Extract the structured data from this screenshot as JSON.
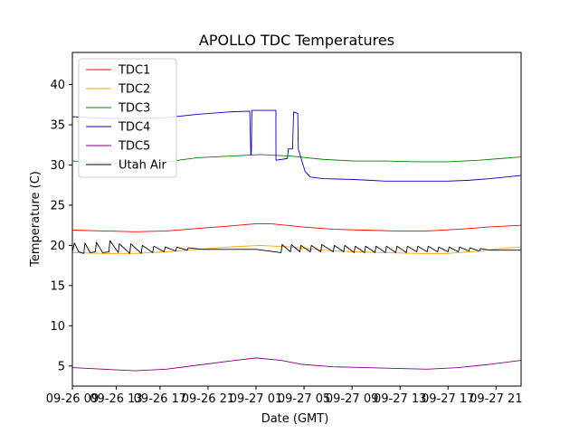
{
  "chart_data": {
    "type": "line",
    "title": "APOLLO TDC Temperatures",
    "xlabel": "Date (GMT)",
    "ylabel": "Temperature (C)",
    "xlim": [
      0,
      43
    ],
    "ylim": [
      2.5,
      44
    ],
    "yticks": [
      5,
      10,
      15,
      20,
      25,
      30,
      35,
      40
    ],
    "xticks": [
      {
        "at": 0,
        "label": "09-26 09"
      },
      {
        "at": 4.2,
        "label": "09-26 13"
      },
      {
        "at": 8.4,
        "label": "09-26 17"
      },
      {
        "at": 13,
        "label": "09-26 21"
      },
      {
        "at": 17.6,
        "label": "09-27 01"
      },
      {
        "at": 22.2,
        "label": "09-27 05"
      },
      {
        "at": 26.8,
        "label": "09-27 09"
      },
      {
        "at": 31.4,
        "label": "09-27 13"
      },
      {
        "at": 36,
        "label": "09-27 17"
      },
      {
        "at": 40.6,
        "label": "09-27 21"
      }
    ],
    "legend_position": "top-left",
    "series": [
      {
        "name": "TDC1",
        "color": "#ff0000",
        "x": [
          0,
          3,
          6,
          9,
          12,
          15,
          17.6,
          19,
          22,
          25,
          28,
          31,
          34,
          37,
          40,
          43
        ],
        "y": [
          21.9,
          21.8,
          21.7,
          21.8,
          22.1,
          22.4,
          22.7,
          22.7,
          22.3,
          22.0,
          21.9,
          21.8,
          21.8,
          22.0,
          22.3,
          22.5
        ]
      },
      {
        "name": "TDC2",
        "color": "#ffa500",
        "x": [
          0,
          3,
          6,
          9,
          12,
          15,
          18,
          21,
          24,
          27,
          30,
          33,
          36,
          39,
          41,
          43
        ],
        "y": [
          19.1,
          19.0,
          19.0,
          19.2,
          19.5,
          19.8,
          20.0,
          19.8,
          19.4,
          19.2,
          19.1,
          19.0,
          19.0,
          19.3,
          19.6,
          19.8
        ]
      },
      {
        "name": "TDC3",
        "color": "#008000",
        "x": [
          0,
          3,
          6,
          9,
          12,
          15,
          18,
          21,
          24,
          27,
          30,
          33,
          36,
          39,
          41,
          43
        ],
        "y": [
          30.5,
          30.3,
          30.2,
          30.4,
          30.9,
          31.1,
          31.3,
          31.1,
          30.7,
          30.5,
          30.5,
          30.4,
          30.4,
          30.6,
          30.8,
          31.0
        ]
      },
      {
        "name": "TDC4",
        "color": "#0000cd",
        "x": [
          0,
          3,
          6,
          9,
          12,
          15,
          17.0,
          17.1,
          17.15,
          17.2,
          19,
          19.5,
          19.51,
          20.6,
          20.7,
          21.1,
          21.2,
          21.6,
          21.65,
          22.3,
          22.8,
          24,
          27,
          30,
          33,
          36,
          38,
          40,
          43
        ],
        "y": [
          36.0,
          35.8,
          35.8,
          35.9,
          36.3,
          36.6,
          36.7,
          31.3,
          31.3,
          36.8,
          36.8,
          36.8,
          30.6,
          30.8,
          32.0,
          32.0,
          36.6,
          36.4,
          32.0,
          29.2,
          28.5,
          28.3,
          28.2,
          28.0,
          28.0,
          28.0,
          28.1,
          28.3,
          28.7
        ]
      },
      {
        "name": "TDC5",
        "color": "#800080",
        "x": [
          0,
          3,
          6,
          9,
          12,
          15,
          17.6,
          20,
          22,
          25,
          28,
          31,
          34,
          37,
          40,
          43
        ],
        "y": [
          4.8,
          4.6,
          4.4,
          4.6,
          5.1,
          5.6,
          6.0,
          5.7,
          5.2,
          4.9,
          4.8,
          4.7,
          4.6,
          4.8,
          5.2,
          5.7
        ]
      },
      {
        "name": "Utah Air",
        "color": "#000000",
        "x": [
          0,
          0.2,
          0.6,
          1.1,
          1.2,
          1.7,
          2.2,
          2.3,
          2.9,
          3.5,
          3.6,
          4.4,
          4.5,
          5.5,
          5.6,
          6.6,
          6.7,
          7.7,
          7.8,
          8.8,
          8.9,
          9.9,
          10.0,
          11.0,
          11.1,
          12.5,
          15.0,
          17.6,
          20.0,
          20.1,
          20.9,
          21.0,
          21.8,
          21.9,
          22.8,
          22.9,
          23.8,
          23.9,
          25.0,
          25.1,
          26.0,
          26.1,
          27.0,
          27.1,
          28.0,
          28.1,
          29.0,
          29.1,
          30.0,
          30.1,
          31.0,
          31.1,
          32.0,
          32.1,
          33.0,
          33.1,
          34.0,
          34.1,
          35.0,
          35.1,
          36.0,
          36.1,
          37.0,
          37.1,
          38.0,
          38.1,
          39.0,
          39.1,
          40.0,
          41.0,
          43.0
        ],
        "y": [
          19.2,
          20.3,
          19.2,
          19.0,
          20.3,
          19.1,
          19.2,
          20.4,
          19.1,
          19.2,
          20.6,
          19.1,
          20.2,
          19.0,
          20.2,
          19.0,
          20.0,
          19.1,
          19.9,
          19.2,
          19.8,
          19.3,
          19.8,
          19.4,
          19.7,
          19.5,
          19.5,
          19.5,
          19.1,
          20.1,
          19.2,
          20.1,
          19.2,
          20.0,
          19.2,
          20.0,
          19.2,
          20.1,
          19.2,
          20.0,
          19.2,
          20.0,
          19.1,
          19.9,
          19.1,
          19.9,
          19.1,
          19.9,
          19.1,
          19.9,
          19.1,
          19.9,
          19.1,
          19.9,
          19.2,
          19.9,
          19.2,
          19.9,
          19.2,
          19.8,
          19.2,
          19.8,
          19.2,
          19.8,
          19.3,
          19.7,
          19.3,
          19.6,
          19.4,
          19.4,
          19.4
        ]
      }
    ]
  }
}
